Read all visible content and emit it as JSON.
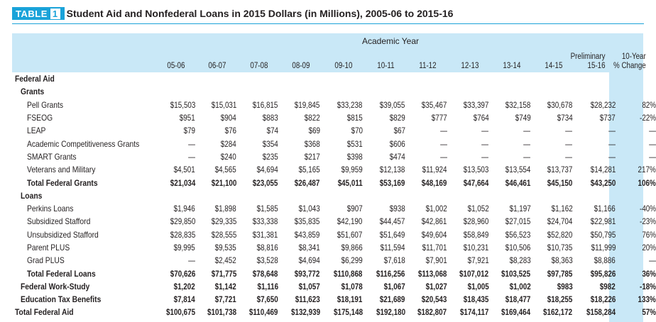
{
  "table_tag": "TABLE",
  "table_num": "1",
  "title": "Student Aid and Nonfederal Loans in 2015 Dollars (in Millions), 2005-06 to 2015-16",
  "group_header": "Academic Year",
  "columns": [
    [
      "05-06"
    ],
    [
      "06-07"
    ],
    [
      "07-08"
    ],
    [
      "08-09"
    ],
    [
      "09-10"
    ],
    [
      "10-11"
    ],
    [
      "11-12"
    ],
    [
      "12-13"
    ],
    [
      "13-14"
    ],
    [
      "14-15"
    ],
    [
      "Preliminary",
      "15-16"
    ],
    [
      "10-Year",
      "% Change"
    ]
  ],
  "rows": [
    {
      "label": "Federal Aid",
      "indent": 0,
      "style": "sec",
      "values": []
    },
    {
      "label": "Grants",
      "indent": 1,
      "style": "sec",
      "values": []
    },
    {
      "label": "Pell Grants",
      "indent": 2,
      "style": "",
      "values": [
        "$15,503",
        "$15,031",
        "$16,815",
        "$19,845",
        "$33,238",
        "$39,055",
        "$35,467",
        "$33,397",
        "$32,158",
        "$30,678",
        "$28,232",
        "82%"
      ]
    },
    {
      "label": "FSEOG",
      "indent": 2,
      "style": "",
      "values": [
        "$951",
        "$904",
        "$883",
        "$822",
        "$815",
        "$829",
        "$777",
        "$764",
        "$749",
        "$734",
        "$737",
        "-22%"
      ]
    },
    {
      "label": "LEAP",
      "indent": 2,
      "style": "",
      "values": [
        "$79",
        "$76",
        "$74",
        "$69",
        "$70",
        "$67",
        "—",
        "—",
        "—",
        "—",
        "—",
        "—"
      ]
    },
    {
      "label": "Academic Competitiveness Grants",
      "indent": 2,
      "style": "",
      "values": [
        "—",
        "$284",
        "$354",
        "$368",
        "$531",
        "$606",
        "—",
        "—",
        "—",
        "—",
        "—",
        "—"
      ]
    },
    {
      "label": "SMART Grants",
      "indent": 2,
      "style": "",
      "values": [
        "—",
        "$240",
        "$235",
        "$217",
        "$398",
        "$474",
        "—",
        "—",
        "—",
        "—",
        "—",
        "—"
      ]
    },
    {
      "label": "Veterans and Military",
      "indent": 2,
      "style": "",
      "values": [
        "$4,501",
        "$4,565",
        "$4,694",
        "$5,165",
        "$9,959",
        "$12,138",
        "$11,924",
        "$13,503",
        "$13,554",
        "$13,737",
        "$14,281",
        "217%"
      ]
    },
    {
      "label": "Total Federal Grants",
      "indent": 2,
      "style": "bold",
      "values": [
        "$21,034",
        "$21,100",
        "$23,055",
        "$26,487",
        "$45,011",
        "$53,169",
        "$48,169",
        "$47,664",
        "$46,461",
        "$45,150",
        "$43,250",
        "106%"
      ]
    },
    {
      "label": "Loans",
      "indent": 1,
      "style": "sec",
      "values": []
    },
    {
      "label": "Perkins Loans",
      "indent": 2,
      "style": "",
      "values": [
        "$1,946",
        "$1,898",
        "$1,585",
        "$1,043",
        "$907",
        "$938",
        "$1,002",
        "$1,052",
        "$1,197",
        "$1,162",
        "$1,166",
        "-40%"
      ]
    },
    {
      "label": "Subsidized Stafford",
      "indent": 2,
      "style": "",
      "values": [
        "$29,850",
        "$29,335",
        "$33,338",
        "$35,835",
        "$42,190",
        "$44,457",
        "$42,861",
        "$28,960",
        "$27,015",
        "$24,704",
        "$22,981",
        "-23%"
      ]
    },
    {
      "label": "Unsubsidized Stafford",
      "indent": 2,
      "style": "",
      "values": [
        "$28,835",
        "$28,555",
        "$31,381",
        "$43,859",
        "$51,607",
        "$51,649",
        "$49,604",
        "$58,849",
        "$56,523",
        "$52,820",
        "$50,795",
        "76%"
      ]
    },
    {
      "label": "Parent PLUS",
      "indent": 2,
      "style": "",
      "values": [
        "$9,995",
        "$9,535",
        "$8,816",
        "$8,341",
        "$9,866",
        "$11,594",
        "$11,701",
        "$10,231",
        "$10,506",
        "$10,735",
        "$11,999",
        "20%"
      ]
    },
    {
      "label": "Grad PLUS",
      "indent": 2,
      "style": "",
      "values": [
        "—",
        "$2,452",
        "$3,528",
        "$4,694",
        "$6,299",
        "$7,618",
        "$7,901",
        "$7,921",
        "$8,283",
        "$8,363",
        "$8,886",
        "—"
      ]
    },
    {
      "label": "Total Federal Loans",
      "indent": 2,
      "style": "bold",
      "values": [
        "$70,626",
        "$71,775",
        "$78,648",
        "$93,772",
        "$110,868",
        "$116,256",
        "$113,068",
        "$107,012",
        "$103,525",
        "$97,785",
        "$95,826",
        "36%"
      ]
    },
    {
      "label": "Federal Work-Study",
      "indent": 1,
      "style": "bold",
      "values": [
        "$1,202",
        "$1,142",
        "$1,116",
        "$1,057",
        "$1,078",
        "$1,067",
        "$1,027",
        "$1,005",
        "$1,002",
        "$983",
        "$982",
        "-18%"
      ]
    },
    {
      "label": "Education Tax Benefits",
      "indent": 1,
      "style": "bold",
      "values": [
        "$7,814",
        "$7,721",
        "$7,650",
        "$11,623",
        "$18,191",
        "$21,689",
        "$20,543",
        "$18,435",
        "$18,477",
        "$18,255",
        "$18,226",
        "133%"
      ]
    },
    {
      "label": "Total Federal Aid",
      "indent": 0,
      "style": "bold",
      "values": [
        "$100,675",
        "$101,738",
        "$110,469",
        "$132,939",
        "$175,148",
        "$192,180",
        "$182,807",
        "$174,117",
        "$169,464",
        "$162,172",
        "$158,284",
        "57%"
      ]
    }
  ],
  "colors": {
    "accent": "#1aa3d9",
    "band": "#c9e8f7",
    "text": "#231f20"
  }
}
